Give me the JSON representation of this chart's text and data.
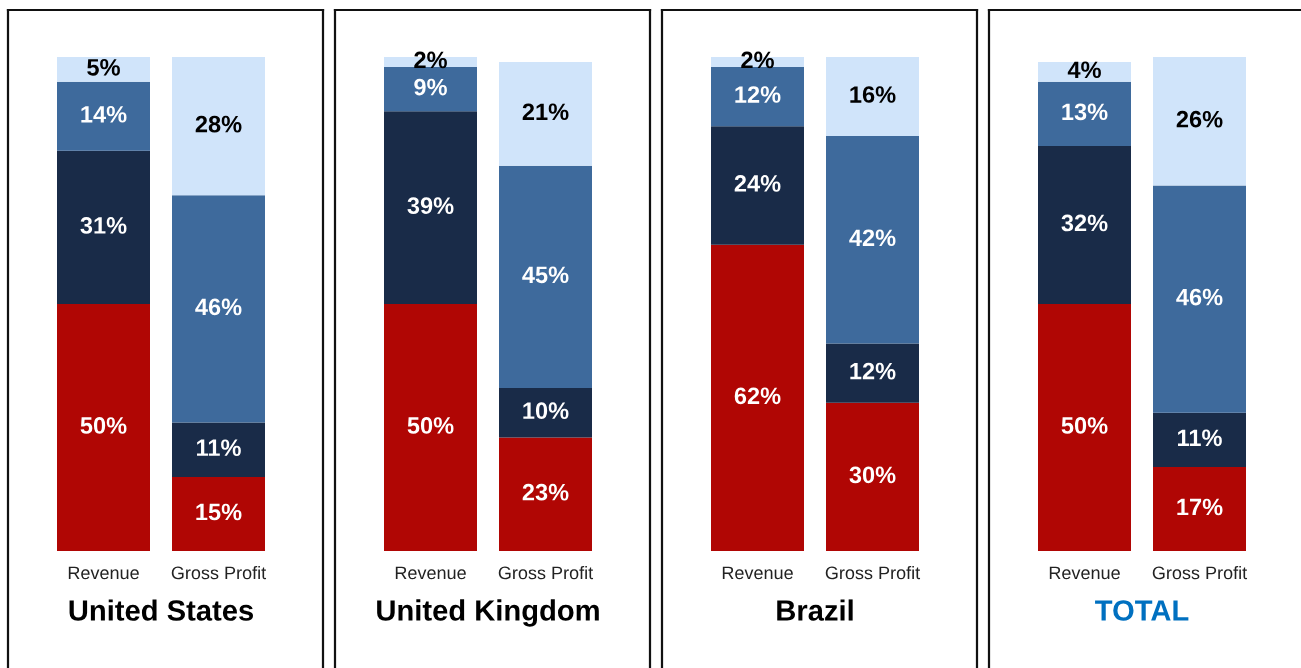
{
  "chart_data": [
    {
      "type": "bar",
      "title": "United States",
      "categories": [
        "Revenue",
        "Gross Profit"
      ],
      "stacked": true,
      "tick_labels": "x",
      "series": [
        {
          "color": "#b00604",
          "values": [
            50,
            15
          ],
          "value_labels": [
            "50%",
            "15%"
          ]
        },
        {
          "color": "#192b48",
          "values": [
            31,
            11
          ],
          "value_labels": [
            "31%",
            "11%"
          ]
        },
        {
          "color": "#3e6a9c",
          "values": [
            14,
            46
          ],
          "value_labels": [
            "14%",
            "46%"
          ]
        },
        {
          "color": "#d0e4fa",
          "values": [
            5,
            28
          ],
          "value_labels": [
            "5%",
            "28%"
          ]
        }
      ]
    },
    {
      "type": "bar",
      "title": "United Kingdom",
      "categories": [
        "Revenue",
        "Gross Profit"
      ],
      "stacked": true,
      "tick_labels": "x",
      "series": [
        {
          "color": "#b00604",
          "values": [
            50,
            23
          ],
          "value_labels": [
            "50%",
            "23%"
          ]
        },
        {
          "color": "#192b48",
          "values": [
            39,
            10
          ],
          "value_labels": [
            "39%",
            "10%"
          ]
        },
        {
          "color": "#3e6a9c",
          "values": [
            9,
            45
          ],
          "value_labels": [
            "9%",
            "45%"
          ]
        },
        {
          "color": "#d0e4fa",
          "values": [
            2,
            21
          ],
          "value_labels": [
            "2%",
            "21%"
          ]
        }
      ]
    },
    {
      "type": "bar",
      "title": "Brazil",
      "categories": [
        "Revenue",
        "Gross Profit"
      ],
      "stacked": true,
      "tick_labels": "x",
      "series": [
        {
          "color": "#b00604",
          "values": [
            62,
            30
          ],
          "value_labels": [
            "62%",
            "30%"
          ]
        },
        {
          "color": "#192b48",
          "values": [
            24,
            12
          ],
          "value_labels": [
            "24%",
            "12%"
          ]
        },
        {
          "color": "#3e6a9c",
          "values": [
            12,
            42
          ],
          "value_labels": [
            "12%",
            "42%"
          ]
        },
        {
          "color": "#d0e4fa",
          "values": [
            2,
            16
          ],
          "value_labels": [
            "2%",
            "16%"
          ]
        }
      ]
    },
    {
      "type": "bar",
      "title": "TOTAL",
      "categories": [
        "Revenue",
        "Gross Profit"
      ],
      "stacked": true,
      "tick_labels": "x",
      "series": [
        {
          "color": "#b00604",
          "values": [
            50,
            17
          ],
          "value_labels": [
            "50%",
            "17%"
          ]
        },
        {
          "color": "#192b48",
          "values": [
            32,
            11
          ],
          "value_labels": [
            "32%",
            "11%"
          ]
        },
        {
          "color": "#3e6a9c",
          "values": [
            13,
            46
          ],
          "value_labels": [
            "13%",
            "46%"
          ]
        },
        {
          "color": "#d0e4fa",
          "values": [
            4,
            26
          ],
          "value_labels": [
            "4%",
            "26%"
          ]
        }
      ]
    }
  ]
}
